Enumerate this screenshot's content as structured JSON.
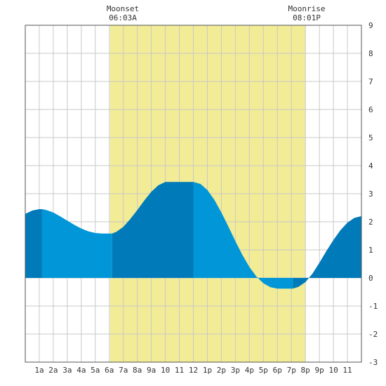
{
  "chart_data": {
    "type": "area",
    "title": "",
    "xlabel": "",
    "ylabel": "",
    "x_tick_labels": [
      "1a",
      "2a",
      "3a",
      "4a",
      "5a",
      "6a",
      "7a",
      "8a",
      "9a",
      "10",
      "11",
      "12",
      "1p",
      "2p",
      "3p",
      "4p",
      "5p",
      "6p",
      "7p",
      "8p",
      "9p",
      "10",
      "11"
    ],
    "xlim_hours": [
      0,
      24
    ],
    "ylim": [
      -3,
      9
    ],
    "y_ticks": [
      -3,
      -2,
      -1,
      0,
      1,
      2,
      3,
      4,
      5,
      6,
      7,
      8,
      9
    ],
    "grid": true,
    "moon_events": [
      {
        "label": "Moonset",
        "time": "06:03A",
        "hour": 6.05
      },
      {
        "label": "Moonrise",
        "time": "08:01P",
        "hour": 20.0167
      }
    ],
    "tide_extremes": [
      {
        "hour": 1.2,
        "height": 2.45
      },
      {
        "hour": 6.2,
        "height": 1.58
      },
      {
        "hour": 12.0,
        "height": 3.42
      },
      {
        "hour": 19.1,
        "height": -0.38
      }
    ],
    "tide_series": {
      "x_hours": [
        0,
        0.5,
        1,
        1.2,
        1.5,
        2,
        2.5,
        3,
        3.5,
        4,
        4.5,
        5,
        5.5,
        6,
        6.2,
        6.5,
        7,
        7.5,
        8,
        8.5,
        9,
        9.5,
        10,
        10.5,
        11,
        11.5,
        12,
        12.5,
        13,
        13.5,
        14,
        14.5,
        15,
        15.5,
        16,
        16.5,
        17,
        17.5,
        18,
        18.5,
        19,
        19.1,
        19.5,
        20,
        20.5,
        21,
        21.5,
        22,
        22.5,
        23,
        23.5,
        24
      ],
      "heights": [
        2.28,
        2.4,
        2.45,
        2.45,
        2.42,
        2.33,
        2.19,
        2.04,
        1.89,
        1.76,
        1.66,
        1.6,
        1.58,
        1.58,
        1.58,
        1.64,
        1.82,
        2.1,
        2.42,
        2.76,
        3.07,
        3.3,
        3.42,
        3.42,
        3.42,
        3.42,
        3.42,
        3.35,
        3.13,
        2.78,
        2.33,
        1.83,
        1.31,
        0.82,
        0.39,
        0.05,
        -0.19,
        -0.33,
        -0.38,
        -0.38,
        -0.38,
        -0.38,
        -0.32,
        -0.15,
        0.15,
        0.54,
        0.96,
        1.35,
        1.7,
        1.97,
        2.14,
        2.2
      ]
    },
    "colors": {
      "moon_band": "#f2ec96",
      "tide_light": "#0096d8",
      "tide_dark": "#007ab8",
      "grid": "#c8c8c8",
      "frame": "#555555"
    }
  }
}
